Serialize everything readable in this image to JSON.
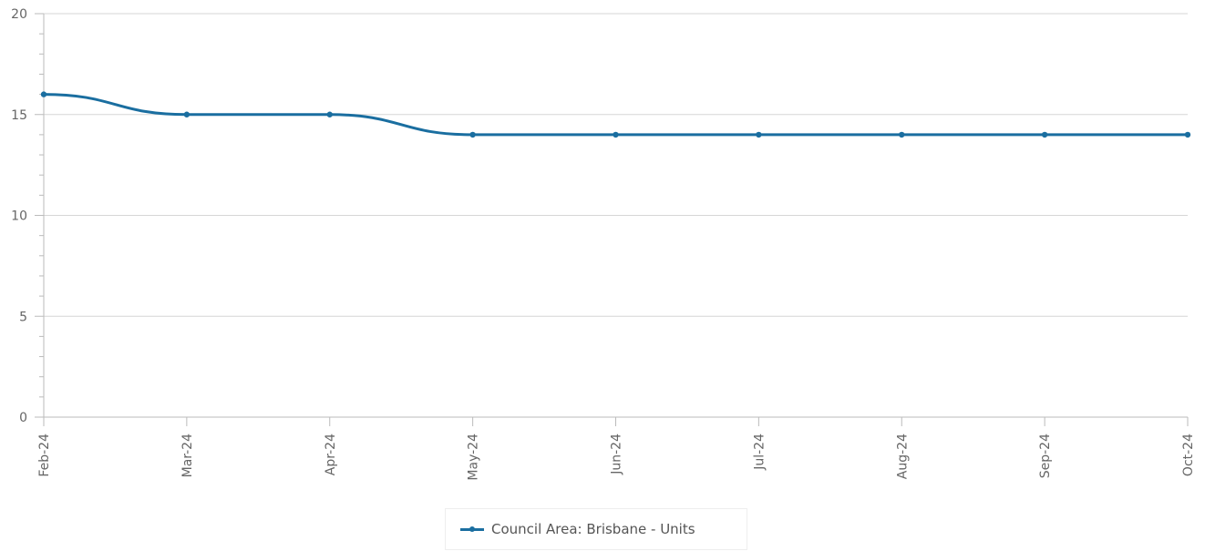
{
  "chart_data": {
    "type": "line",
    "categories": [
      "Feb-24",
      "Mar-24",
      "Apr-24",
      "May-24",
      "Jun-24",
      "Jul-24",
      "Aug-24",
      "Sep-24",
      "Oct-24"
    ],
    "series": [
      {
        "name": "Council Area: Brisbane - Units",
        "values": [
          16,
          15,
          15,
          14,
          14,
          14,
          14,
          14,
          14
        ],
        "color": "#1a6ea0"
      }
    ],
    "yticks": [
      "0",
      "5",
      "10",
      "15",
      "20"
    ],
    "ylim": [
      0,
      20
    ],
    "grid": true,
    "legend_position": "bottom-center",
    "title": "",
    "xlabel": "",
    "ylabel": ""
  }
}
